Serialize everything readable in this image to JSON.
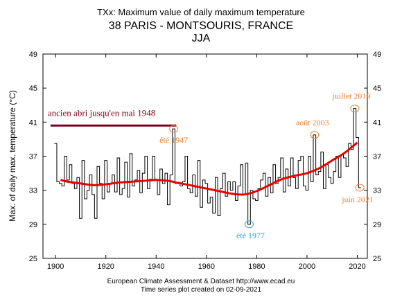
{
  "chart_data": {
    "type": "line",
    "title": "TXx: Maximum value of daily maximum temperature",
    "subtitle": "38 PARIS - MONTSOURIS, FRANCE",
    "season": "JJA",
    "ylabel": "Max. of daily max. temperature (°C)",
    "xlabel": "",
    "xlim": [
      1895,
      2024
    ],
    "ylim": [
      25,
      49
    ],
    "x_ticks": [
      1900,
      1920,
      1940,
      1960,
      1980,
      2000,
      2020
    ],
    "y_ticks": [
      25,
      29,
      33,
      37,
      41,
      45,
      49
    ],
    "grid": false,
    "colors": {
      "series": "#000000",
      "smooth": "#e60000",
      "shelter": "#7a0020",
      "annotation": "#f08030",
      "annotation_low": "#30a0d8"
    },
    "series": [
      {
        "x": [
          1900,
          1901,
          1902,
          1903,
          1904,
          1905,
          1906,
          1907,
          1908,
          1909,
          1910,
          1911,
          1912,
          1913,
          1914,
          1915,
          1916,
          1917,
          1918,
          1919,
          1920,
          1921,
          1922,
          1923,
          1924,
          1925,
          1926,
          1927,
          1928,
          1929,
          1930,
          1931,
          1932,
          1933,
          1934,
          1935,
          1936,
          1937,
          1938,
          1939,
          1940,
          1941,
          1942,
          1943,
          1944,
          1945,
          1946,
          1947,
          1948,
          1949,
          1950,
          1951,
          1952,
          1953,
          1954,
          1955,
          1956,
          1957,
          1958,
          1959,
          1960,
          1961,
          1962,
          1963,
          1964,
          1965,
          1966,
          1967,
          1968,
          1969,
          1970,
          1971,
          1972,
          1973,
          1974,
          1975,
          1976,
          1977,
          1978,
          1979,
          1980,
          1981,
          1982,
          1983,
          1984,
          1985,
          1986,
          1987,
          1988,
          1989,
          1990,
          1991,
          1992,
          1993,
          1994,
          1995,
          1996,
          1997,
          1998,
          1999,
          2000,
          2001,
          2002,
          2003,
          2004,
          2005,
          2006,
          2007,
          2008,
          2009,
          2010,
          2011,
          2012,
          2013,
          2014,
          2015,
          2016,
          2017,
          2018,
          2019,
          2020,
          2021
        ],
        "y": [
          38.5,
          34.0,
          33.8,
          33.5,
          37.0,
          34.2,
          36.0,
          33.8,
          33.2,
          34.5,
          29.7,
          36.5,
          32.0,
          33.0,
          34.8,
          32.5,
          29.7,
          35.8,
          33.8,
          32.0,
          36.5,
          32.8,
          33.8,
          34.8,
          32.8,
          36.8,
          32.5,
          33.2,
          36.3,
          32.2,
          37.3,
          33.5,
          34.2,
          35.3,
          32.7,
          35.0,
          37.0,
          33.2,
          34.3,
          37.0,
          34.3,
          32.5,
          35.5,
          33.8,
          35.0,
          31.3,
          34.8,
          40.2,
          33.8,
          33.8,
          33.5,
          34.0,
          37.0,
          33.2,
          32.7,
          34.8,
          32.3,
          36.5,
          31.0,
          34.2,
          33.8,
          31.5,
          32.2,
          30.3,
          34.5,
          30.0,
          33.2,
          35.0,
          32.3,
          34.0,
          33.0,
          34.0,
          31.8,
          33.5,
          36.0,
          32.5,
          36.2,
          29.0,
          33.0,
          32.0,
          31.8,
          33.2,
          34.2,
          35.0,
          32.3,
          34.5,
          32.7,
          36.0,
          33.8,
          34.5,
          36.8,
          32.8,
          35.5,
          33.5,
          36.8,
          34.5,
          33.2,
          36.5,
          37.0,
          33.5,
          33.0,
          37.0,
          34.0,
          39.5,
          34.8,
          35.2,
          37.5,
          33.2,
          36.0,
          34.5,
          33.8,
          35.2,
          37.0,
          34.5,
          37.2,
          36.8,
          35.8,
          38.5,
          37.8,
          42.6,
          39.2,
          33.3
        ]
      },
      {
        "name": "",
        "x": [
          1902,
          1905,
          1910,
          1915,
          1920,
          1925,
          1930,
          1935,
          1940,
          1945,
          1948,
          1950,
          1955,
          1960,
          1965,
          1970,
          1975,
          1980,
          1985,
          1990,
          1995,
          2000,
          2005,
          2010,
          2015,
          2020
        ],
        "y": [
          34.2,
          34.0,
          33.8,
          33.6,
          33.7,
          33.9,
          34.0,
          34.1,
          34.2,
          34.1,
          33.9,
          33.8,
          33.5,
          33.2,
          32.9,
          32.6,
          32.5,
          32.9,
          33.6,
          34.3,
          34.7,
          35.0,
          35.6,
          36.5,
          37.4,
          38.6
        ]
      }
    ],
    "shelter_label": "ancien abri jusqu'en mai 1948",
    "shelter_range": [
      1898,
      1948
    ],
    "shelter_level": 40.6,
    "annotations": [
      {
        "text": "été 1947",
        "x": 1947,
        "y": 40.2,
        "color": "#f08030"
      },
      {
        "text": "été 1977",
        "x": 1977,
        "y": 29.0,
        "color": "#30a0d8"
      },
      {
        "text": "août 2003",
        "x": 2003,
        "y": 39.5,
        "color": "#f08030"
      },
      {
        "text": "juillet 2019",
        "x": 2019,
        "y": 42.6,
        "color": "#f08030"
      },
      {
        "text": "juin 2021",
        "x": 2021,
        "y": 33.3,
        "color": "#f08030"
      }
    ]
  },
  "footer": {
    "line1": "European Climate Assessment & Dataset  http://www.ecad.eu",
    "line2": "Time series plot created on 02-09-2021"
  }
}
